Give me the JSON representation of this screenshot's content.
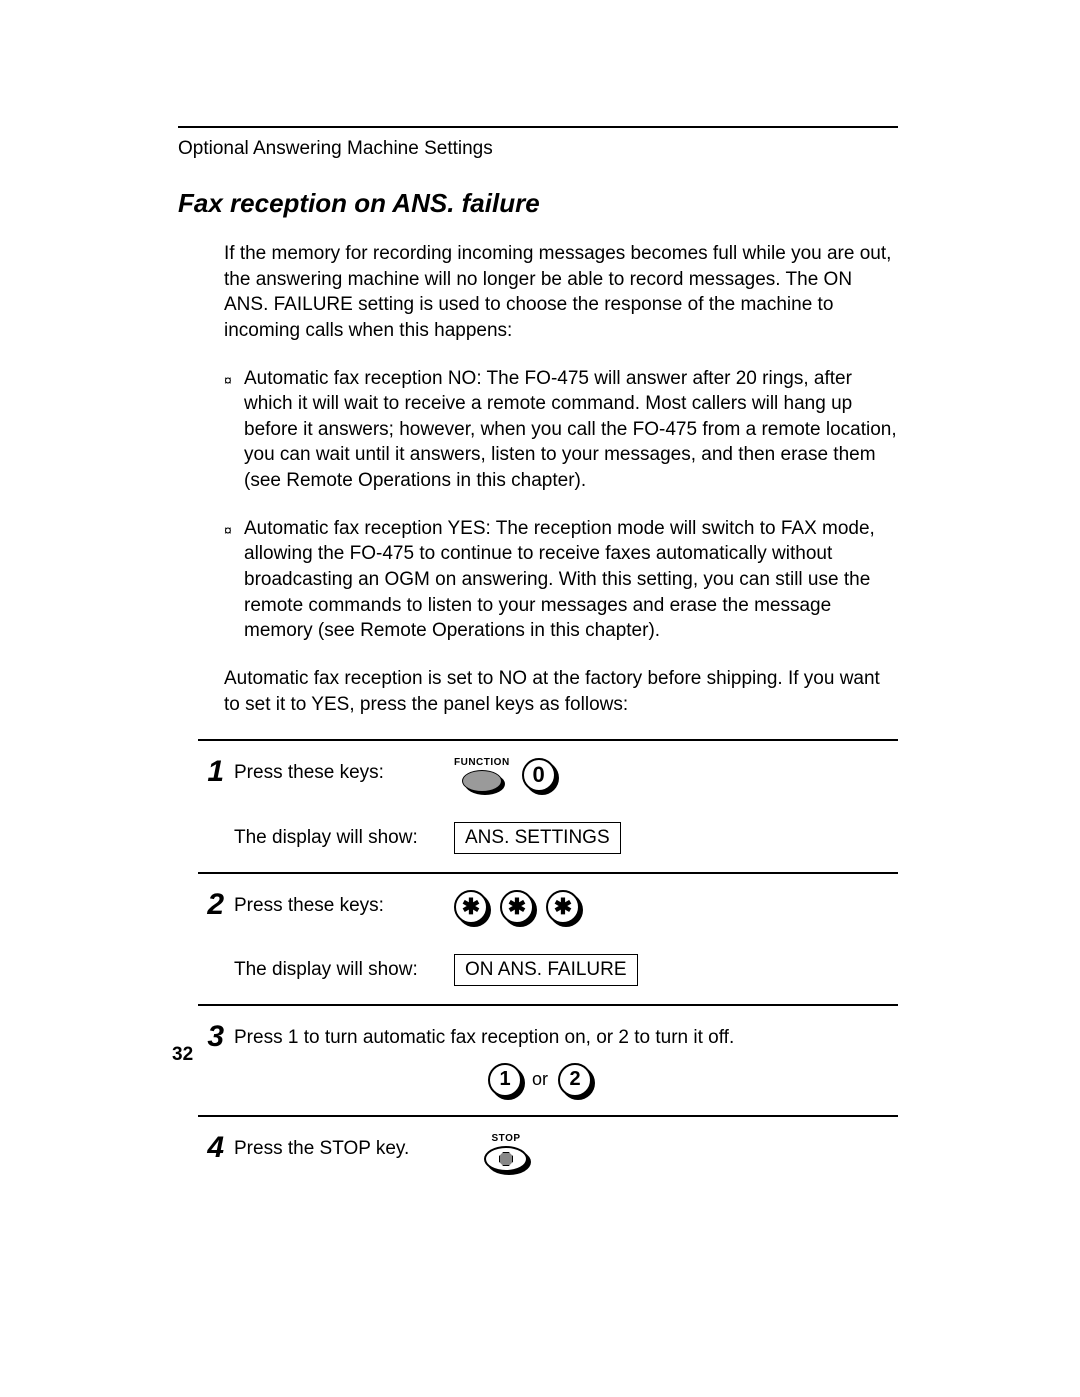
{
  "header": "Optional Answering Machine Settings",
  "title": "Fax reception on ANS. failure",
  "intro": "If the memory for recording incoming messages becomes full while you are out, the answering machine will no longer be able to record messages. The ON ANS. FAILURE setting is used to choose the response of the machine to incoming calls when this happens:",
  "bullets": [
    "Automatic fax reception NO: The FO-475 will answer after 20 rings, after which it will wait to receive a remote command. Most callers will hang up before it answers; however, when you call the FO-475 from a remote location, you can wait until it answers, listen to your messages, and then erase them (see Remote Operations in this chapter).",
    "Automatic fax reception YES: The reception mode will switch to FAX mode, allowing the FO-475 to continue to receive faxes automatically without broadcasting an OGM on answering. With this setting, you can still use the remote commands to listen to your messages and erase the message memory (see Remote Operations in this chapter)."
  ],
  "closing": "Automatic fax reception is set to NO at the factory before shipping. If you want to set it to YES, press the panel keys as follows:",
  "steps": {
    "s1": {
      "num": "1",
      "label": "Press these keys:",
      "fn_label": "FUNCTION",
      "key": "0",
      "display_label": "The display will show:",
      "display_value": "ANS. SETTINGS"
    },
    "s2": {
      "num": "2",
      "label": "Press these keys:",
      "star": "✱",
      "display_label": "The display will show:",
      "display_value": "ON ANS. FAILURE"
    },
    "s3": {
      "num": "3",
      "text": "Press 1 to turn automatic fax reception on, or 2 to turn it off.",
      "key1": "1",
      "or": "or",
      "key2": "2"
    },
    "s4": {
      "num": "4",
      "text": "Press the STOP key.",
      "stop_label": "STOP"
    }
  },
  "page_number": "32"
}
